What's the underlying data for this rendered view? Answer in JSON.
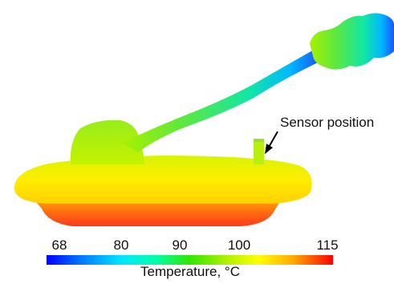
{
  "annotation": {
    "label": "Sensor position"
  },
  "colorbar": {
    "title": "Temperature, °C",
    "ticks": [
      "68",
      "80",
      "90",
      "100",
      "115"
    ],
    "tick_values": [
      68,
      80,
      90,
      100,
      115
    ],
    "range": [
      68,
      115
    ],
    "colormap": [
      "#0000ff",
      "#00a5ff",
      "#00ffc8",
      "#32e600",
      "#aaf000",
      "#ffff00",
      "#ffaa00",
      "#ff4000",
      "#ff0000"
    ]
  },
  "colors": {
    "pipe_end": "#1a6dff",
    "hot_bottom": "#ff4a18",
    "lid": "#ffe800",
    "dome": "#a8ee10",
    "pipe": "#3fe06a"
  }
}
